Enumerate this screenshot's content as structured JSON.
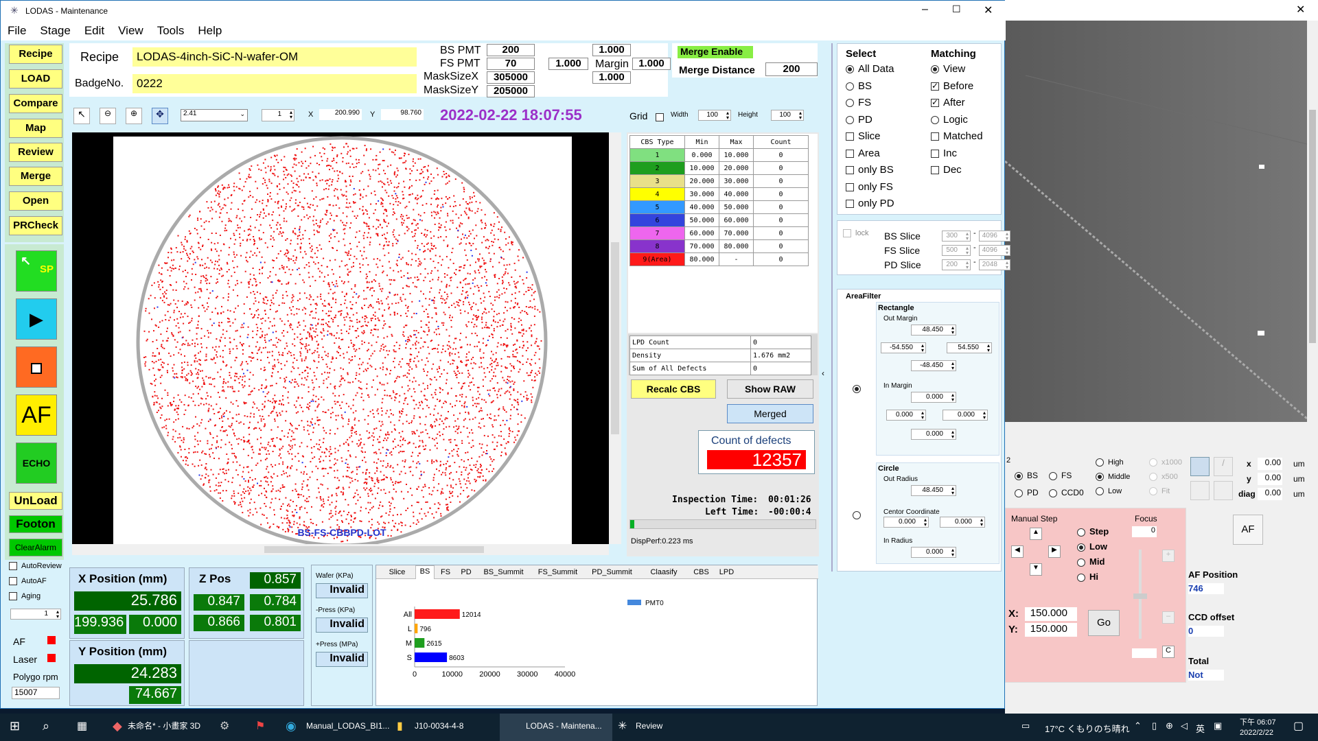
{
  "window": {
    "title": "LODAS - Maintenance",
    "icon": "snowflake-icon"
  },
  "menu": [
    "File",
    "Stage",
    "Edit",
    "View",
    "Tools",
    "Help"
  ],
  "left_buttons": [
    "Recipe",
    "LOAD",
    "Compare",
    "Map",
    "Review",
    "Merge",
    "Open",
    "PRCheck"
  ],
  "big_buttons": {
    "sp": "SP",
    "af": "AF",
    "echo": "ECHO",
    "unload": "UnLoad",
    "footon": "Footon",
    "clearalarm": "ClearAlarm"
  },
  "side_checks": {
    "autoreview": "AutoReview",
    "autoaf": "AutoAF",
    "aging": "Aging",
    "aging_value": "1"
  },
  "status": {
    "af": "AF",
    "laser": "Laser",
    "polygon": "Polygo rpm",
    "polygon_value": "15007"
  },
  "recipe": {
    "label": "Recipe",
    "value": "LODAS-4inch-SiC-N-wafer-OM",
    "badge_label": "BadgeNo.",
    "badge_value": "0222"
  },
  "pmt": {
    "bs_label": "BS PMT",
    "bs_value": "200",
    "fs_label": "FS PMT",
    "fs_value": "70",
    "msx_label": "MaskSizeX",
    "msx_value": "305000",
    "msy_label": "MaskSizeY",
    "msy_value": "205000"
  },
  "margin": {
    "top": "1.000",
    "left": "1.000",
    "label": "Margin",
    "right": "1.000",
    "bottom": "1.000"
  },
  "merge": {
    "enable": "Merge Enable",
    "distance_label": "Merge Distance",
    "distance_value": "200"
  },
  "toolbar": {
    "zoom_value": "2.41",
    "page": "1",
    "x_label": "X",
    "x_value": "200.990",
    "y_label": "Y",
    "y_value": "98.760",
    "datetime": "2022-02-22 18:07:55",
    "grid": "Grid",
    "width_label": "Width",
    "width_value": "100",
    "height_label": "Height",
    "height_value": "100"
  },
  "wafer_text": "BS-FS-CBBPD-LOT",
  "cbs": {
    "headers": [
      "CBS Type",
      "Min",
      "Max",
      "Count"
    ],
    "rows": [
      {
        "type": "1",
        "min": "0.000",
        "max": "10.000",
        "count": "0",
        "color": "#80e080"
      },
      {
        "type": "2",
        "min": "10.000",
        "max": "20.000",
        "count": "0",
        "color": "#1e9e1e"
      },
      {
        "type": "3",
        "min": "20.000",
        "max": "30.000",
        "count": "0",
        "color": "#e8e08a"
      },
      {
        "type": "4",
        "min": "30.000",
        "max": "40.000",
        "count": "0",
        "color": "#ffff00"
      },
      {
        "type": "5",
        "min": "40.000",
        "max": "50.000",
        "count": "0",
        "color": "#3399ff"
      },
      {
        "type": "6",
        "min": "50.000",
        "max": "60.000",
        "count": "0",
        "color": "#3344dd"
      },
      {
        "type": "7",
        "min": "60.000",
        "max": "70.000",
        "count": "0",
        "color": "#ee66ee"
      },
      {
        "type": "8",
        "min": "70.000",
        "max": "80.000",
        "count": "0",
        "color": "#8833cc"
      },
      {
        "type": "9(Area)",
        "min": "80.000",
        "max": "-",
        "count": "0",
        "color": "#ff1a1a"
      }
    ]
  },
  "stats": [
    {
      "label": "LPD Count",
      "value": "0"
    },
    {
      "label": "Density",
      "value": "1.676 mm2"
    },
    {
      "label": "Sum of All Defects",
      "value": "0"
    }
  ],
  "actions": {
    "recalc": "Recalc CBS",
    "showraw": "Show RAW",
    "merged": "Merged"
  },
  "defects": {
    "label": "Count of defects",
    "value": "12357"
  },
  "timing": {
    "insp_label": "Inspection Time:",
    "insp_value": "00:01:26",
    "left_label": "Left Time:",
    "left_value": "-00:00:4",
    "perf": "DispPerf:0.223 ms"
  },
  "select": {
    "title": "Select",
    "items": [
      {
        "label": "All Data",
        "type": "radio",
        "on": true
      },
      {
        "label": "BS",
        "type": "radio"
      },
      {
        "label": "FS",
        "type": "radio"
      },
      {
        "label": "PD",
        "type": "radio"
      },
      {
        "label": "Slice",
        "type": "check"
      },
      {
        "label": "Area",
        "type": "check"
      },
      {
        "label": "only BS",
        "type": "check"
      },
      {
        "label": "only FS",
        "type": "check"
      },
      {
        "label": "only PD",
        "type": "check"
      }
    ]
  },
  "matching": {
    "title": "Matching",
    "items": [
      {
        "label": "View",
        "type": "radio",
        "on": true
      },
      {
        "label": "Before",
        "type": "check",
        "on": true
      },
      {
        "label": "After",
        "type": "check",
        "on": true
      },
      {
        "label": "Logic",
        "type": "radio"
      },
      {
        "label": "Matched",
        "type": "check"
      },
      {
        "label": "Inc",
        "type": "check"
      },
      {
        "label": "Dec",
        "type": "check"
      }
    ]
  },
  "slices": {
    "lock": "lock",
    "rows": [
      {
        "label": "BS Slice",
        "a": "300",
        "b": "4096"
      },
      {
        "label": "FS Slice",
        "a": "500",
        "b": "4096"
      },
      {
        "label": "PD Slice",
        "a": "200",
        "b": "2048"
      }
    ]
  },
  "areafilter": {
    "title": "AreaFilter",
    "rect": "Rectangle",
    "out_margin": "Out Margin",
    "om_top": "48.450",
    "om_left": "-54.550",
    "om_right": "54.550",
    "om_bottom": "-48.450",
    "in_margin": "In Margin",
    "im_top": "0.000",
    "im_left": "0.000",
    "im_right": "0.000",
    "im_bottom": "0.000",
    "circle": "Circle",
    "out_radius": "Out Radius",
    "or_value": "48.450",
    "center": "Centor Coordinate",
    "c_x": "0.000",
    "c_y": "0.000",
    "in_radius": "In Radius",
    "ir_value": "0.000"
  },
  "xpos": {
    "label": "X Position (mm)",
    "v1": "25.786",
    "v2": "199.936",
    "v3": "0.000"
  },
  "ypos": {
    "label": "Y Position (mm)",
    "v1": "24.283",
    "v2": "74.667"
  },
  "zpos": {
    "label": "Z Pos",
    "v1": "0.857",
    "v2": "0.847",
    "v3": "0.784",
    "v4": "0.866",
    "v5": "0.801"
  },
  "pressure": [
    {
      "label": "Wafer (KPa)",
      "value": "Invalid"
    },
    {
      "label": "-Press (KPa)",
      "value": "Invalid"
    },
    {
      "label": "+Press (MPa)",
      "value": "Invalid"
    }
  ],
  "tabs": [
    "Slice",
    "BS",
    "FS",
    "PD",
    "BS_Summit",
    "FS_Summit",
    "PD_Summit",
    "Claasify",
    "CBS",
    "LPD"
  ],
  "chart_data": {
    "type": "bar",
    "orientation": "horizontal",
    "categories": [
      "All",
      "L",
      "M",
      "S"
    ],
    "values": [
      12014,
      796,
      2615,
      8603
    ],
    "colors": [
      "#ff1a1a",
      "#ffa500",
      "#1e9e1e",
      "#0000ff"
    ],
    "xlim": [
      0,
      40000
    ],
    "xticks": [
      "0",
      "10000",
      "20000",
      "30000",
      "40000"
    ],
    "legend": "PMT0",
    "legend_pos": "top-right"
  },
  "camera": {
    "radios1": [
      "BS",
      "FS",
      "PD",
      "CCD0"
    ],
    "radios2": [
      "High",
      "Middle",
      "Low"
    ],
    "radios3": [
      "x1000",
      "x500",
      "Fit"
    ],
    "x_label": "x",
    "x_value": "0.00",
    "y_label": "y",
    "y_value": "0.00",
    "diag_label": "diag",
    "diag_value": "0.00",
    "unit": "um",
    "num": "2",
    "manual_step": "Manual Step",
    "step": "Step",
    "low": "Low",
    "mid": "Mid",
    "hi": "Hi",
    "focus": "Focus",
    "focus_value": "0",
    "gx_label": "X:",
    "gx_value": "150.000",
    "gy_label": "Y:",
    "gy_value": "150.000",
    "go": "Go",
    "c": "C",
    "af_btn": "AF",
    "afpos_label": "AF Position",
    "afpos_value": "746",
    "ccd_label": "CCD offset",
    "ccd_value": "0",
    "total_label": "Total",
    "total_value": "Not"
  },
  "taskbar": {
    "items": [
      "未命名* - 小畫家 3D",
      "Manual_LODAS_BI1...",
      "J10-0034-4-8",
      "LODAS - Maintena...",
      "Review"
    ],
    "weather": "17°C くもりのち晴れ",
    "ime": "英",
    "time": "下午 06:07",
    "date": "2022/2/22"
  }
}
